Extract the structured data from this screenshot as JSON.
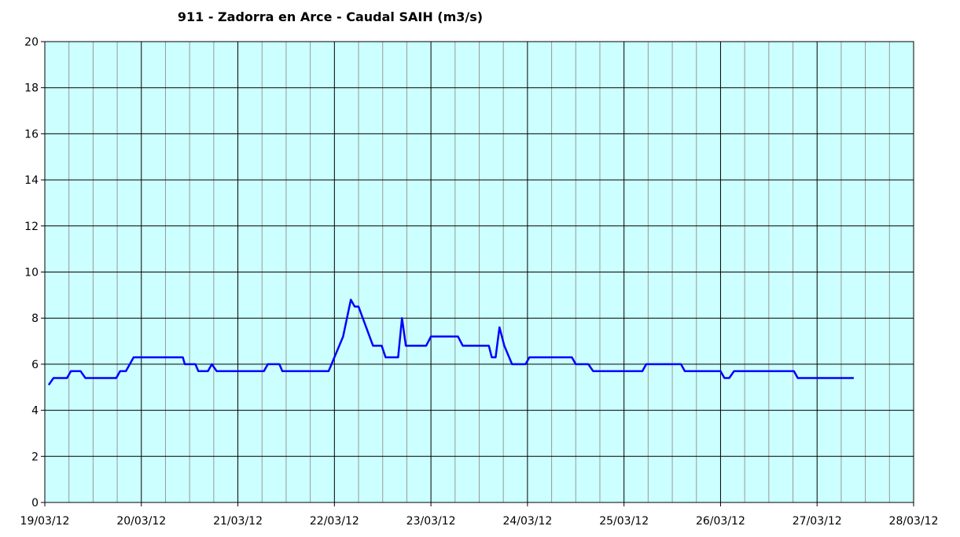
{
  "chart_data": {
    "type": "line",
    "title": "911 - Zadorra en Arce - Caudal SAIH (m3/s)",
    "x": [
      0.04,
      0.09,
      0.23,
      0.27,
      0.37,
      0.42,
      0.74,
      0.78,
      0.84,
      0.92,
      1.43,
      1.45,
      1.56,
      1.59,
      1.69,
      1.73,
      1.78,
      2.27,
      2.31,
      2.43,
      2.46,
      2.94,
      3.0,
      3.09,
      3.17,
      3.21,
      3.25,
      3.4,
      3.49,
      3.53,
      3.66,
      3.7,
      3.74,
      3.95,
      4.0,
      4.28,
      4.33,
      4.6,
      4.63,
      4.67,
      4.71,
      4.76,
      4.84,
      4.98,
      5.02,
      5.46,
      5.5,
      5.63,
      5.68,
      6.19,
      6.23,
      6.59,
      6.63,
      7.0,
      7.04,
      7.09,
      7.14,
      7.76,
      7.8,
      8.38
    ],
    "series": [
      {
        "name": "Caudal SAIH",
        "color": "#0000ff",
        "values": [
          5.1,
          5.4,
          5.4,
          5.7,
          5.7,
          5.4,
          5.4,
          5.7,
          5.7,
          6.3,
          6.3,
          6.0,
          6.0,
          5.7,
          5.7,
          6.0,
          5.7,
          5.7,
          6.0,
          6.0,
          5.7,
          5.7,
          6.3,
          7.2,
          8.8,
          8.5,
          8.5,
          6.8,
          6.8,
          6.3,
          6.3,
          8.0,
          6.8,
          6.8,
          7.2,
          7.2,
          6.8,
          6.8,
          6.3,
          6.3,
          7.6,
          6.8,
          6.0,
          6.0,
          6.3,
          6.3,
          6.0,
          6.0,
          5.7,
          5.7,
          6.0,
          6.0,
          5.7,
          5.7,
          5.4,
          5.4,
          5.7,
          5.7,
          5.4,
          5.4
        ]
      }
    ],
    "xlim": [
      0,
      9
    ],
    "xticks": [
      {
        "value": 0,
        "label": "19/03/12"
      },
      {
        "value": 1,
        "label": "20/03/12"
      },
      {
        "value": 2,
        "label": "21/03/12"
      },
      {
        "value": 3,
        "label": "22/03/12"
      },
      {
        "value": 4,
        "label": "23/03/12"
      },
      {
        "value": 5,
        "label": "24/03/12"
      },
      {
        "value": 6,
        "label": "25/03/12"
      },
      {
        "value": 7,
        "label": "26/03/12"
      },
      {
        "value": 8,
        "label": "27/03/12"
      },
      {
        "value": 9,
        "label": "28/03/12"
      }
    ],
    "xminorticks": [
      0.25,
      0.5,
      0.75,
      1.25,
      1.5,
      1.75,
      2.25,
      2.5,
      2.75,
      3.25,
      3.5,
      3.75,
      4.25,
      4.5,
      4.75,
      5.25,
      5.5,
      5.75,
      6.25,
      6.5,
      6.75,
      7.25,
      7.5,
      7.75,
      8.25,
      8.5,
      8.75
    ],
    "ylim": [
      0,
      20
    ],
    "yticks": [
      0,
      2,
      4,
      6,
      8,
      10,
      12,
      14,
      16,
      18,
      20
    ],
    "grid": true,
    "background": "#ccffff"
  }
}
